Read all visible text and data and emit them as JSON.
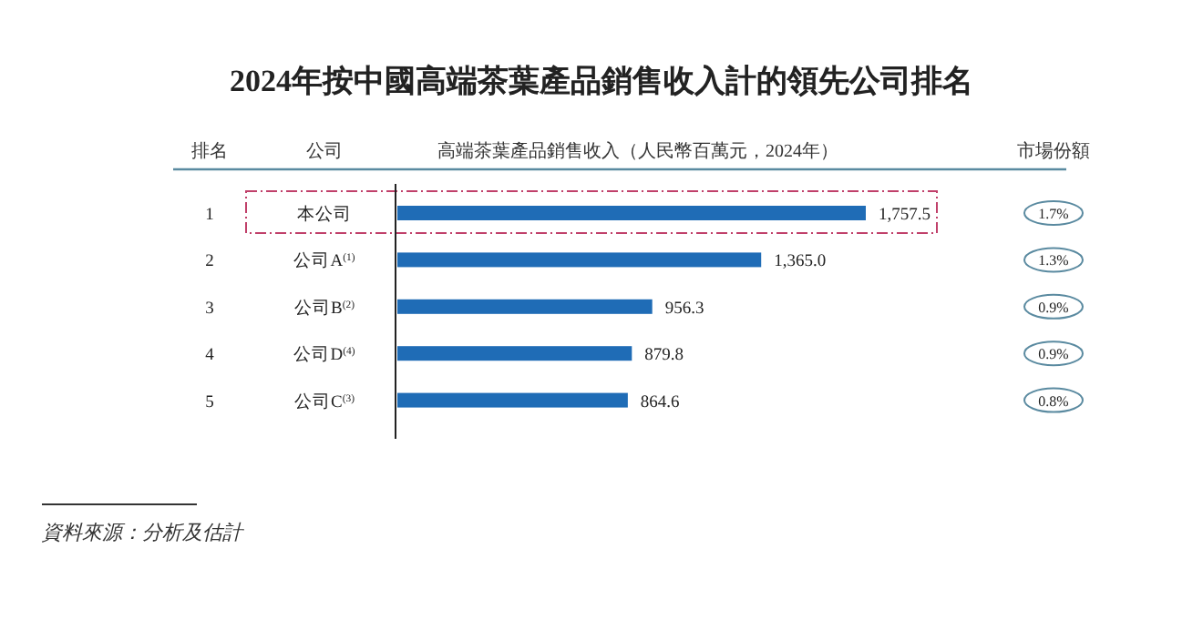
{
  "chart_data": {
    "type": "bar",
    "orientation": "horizontal",
    "title": "2024年按中國高端茶葉產品銷售收入計的領先公司排名",
    "xlabel": "高端茶葉產品銷售收入（人民幣百萬元，2024年）",
    "categories": [
      "本公司",
      "公司A$^{(1)}$",
      "公司B$^{(2)}$",
      "公司D$^{(4)}$",
      "公司C$^{(3)}$"
    ],
    "values": [
      1757.5,
      1365.0,
      956.3,
      879.8,
      864.6
    ],
    "value_labels": [
      "1,757.5",
      "1,365.0",
      "956.3",
      "879.8",
      "864.6"
    ],
    "color": "#1f6cb6",
    "annotations": [
      "排名",
      "公司",
      "市場份額",
      "1",
      "2",
      "3",
      "4",
      "5",
      "1.7%",
      "1.3%",
      "0.9%",
      "0.9%",
      "0.8%",
      "資料來源：分析及估計"
    ]
  }
}
